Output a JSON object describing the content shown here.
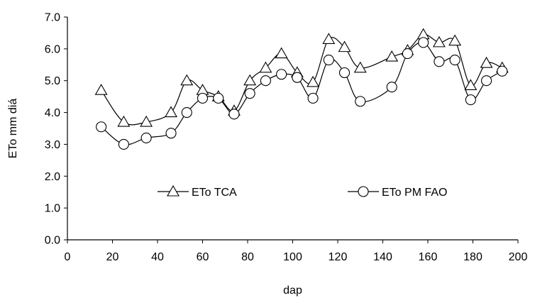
{
  "chart_data": {
    "type": "line",
    "title": "",
    "xlabel": "dap",
    "ylabel": "ETo  mm diá",
    "xlim": [
      0,
      200
    ],
    "ylim": [
      0,
      7
    ],
    "xticks": [
      0,
      20,
      40,
      60,
      80,
      100,
      120,
      140,
      160,
      180,
      200
    ],
    "yticks": [
      0,
      1,
      2,
      3,
      4,
      5,
      6,
      7
    ],
    "xtick_labels": [
      "0",
      "20",
      "40",
      "60",
      "80",
      "100",
      "120",
      "140",
      "160",
      "180",
      "200"
    ],
    "ytick_labels": [
      "0.0",
      "1.0",
      "2.0",
      "3.0",
      "4.0",
      "5.0",
      "6.0",
      "7.0"
    ],
    "grid": false,
    "legend_position": "inside-bottom",
    "series": [
      {
        "name": "ETo TCA",
        "marker": "triangle",
        "x": [
          15,
          25,
          35,
          46,
          53,
          60,
          67,
          74,
          81,
          88,
          95,
          102,
          109,
          116,
          123,
          130,
          144,
          151,
          158,
          165,
          172,
          179,
          186,
          193
        ],
        "y": [
          4.7,
          3.7,
          3.7,
          4.0,
          5.0,
          4.7,
          4.5,
          4.05,
          5.0,
          5.4,
          5.85,
          5.25,
          4.95,
          6.3,
          6.05,
          5.4,
          5.75,
          5.95,
          6.45,
          6.2,
          6.25,
          4.85,
          5.55,
          5.4
        ]
      },
      {
        "name": "ETo PM FAO",
        "marker": "circle",
        "x": [
          15,
          25,
          35,
          46,
          53,
          60,
          67,
          74,
          81,
          88,
          95,
          102,
          109,
          116,
          123,
          130,
          144,
          151,
          158,
          165,
          172,
          179,
          186,
          193
        ],
        "y": [
          3.55,
          3.0,
          3.2,
          3.35,
          4.0,
          4.45,
          4.45,
          3.95,
          4.6,
          5.0,
          5.2,
          5.1,
          4.45,
          5.65,
          5.25,
          4.35,
          4.8,
          5.85,
          6.2,
          5.6,
          5.65,
          4.4,
          5.0,
          5.3
        ]
      }
    ]
  }
}
